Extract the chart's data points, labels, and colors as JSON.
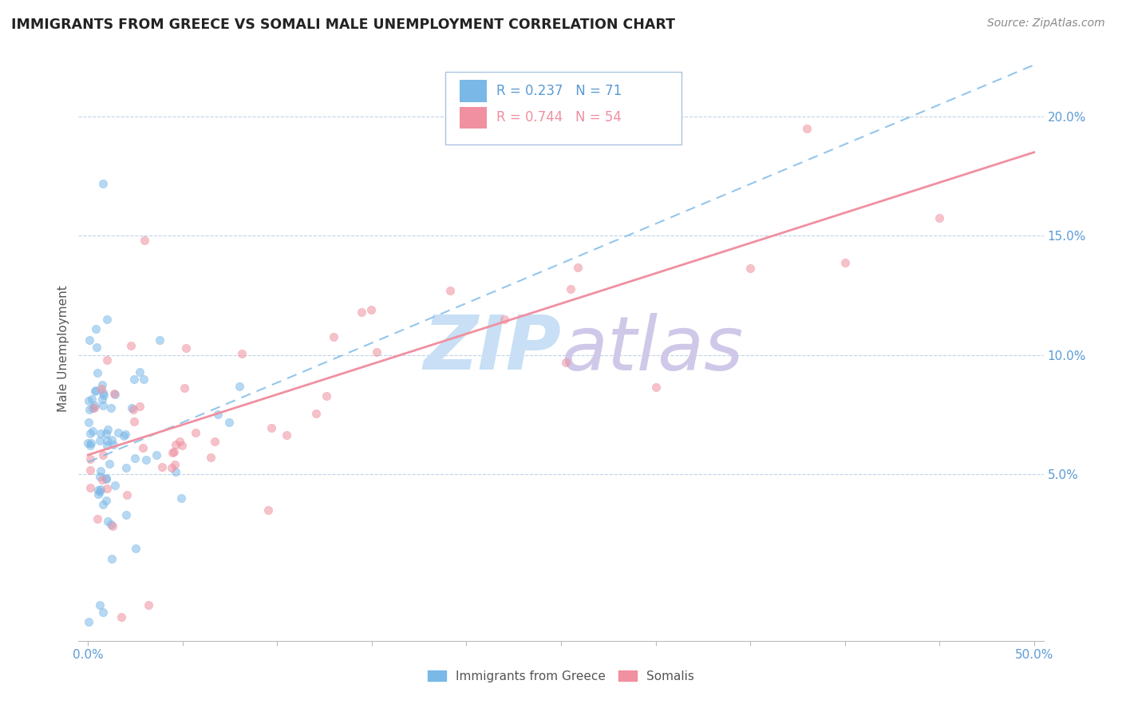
{
  "title": "IMMIGRANTS FROM GREECE VS SOMALI MALE UNEMPLOYMENT CORRELATION CHART",
  "source": "Source: ZipAtlas.com",
  "ylabel": "Male Unemployment",
  "xlim": [
    -0.005,
    0.505
  ],
  "ylim": [
    -0.02,
    0.225
  ],
  "xtick_positions": [
    0.0,
    0.05,
    0.1,
    0.15,
    0.2,
    0.25,
    0.3,
    0.35,
    0.4,
    0.45,
    0.5
  ],
  "xticklabels_show": {
    "0.0": "0.0%",
    "0.50": "50.0%"
  },
  "ytick_positions": [
    0.05,
    0.1,
    0.15,
    0.2
  ],
  "yticklabels": [
    "5.0%",
    "10.0%",
    "15.0%",
    "20.0%"
  ],
  "legend_bottom_label1": "Immigrants from Greece",
  "legend_bottom_label2": "Somalis",
  "color_blue": "#7ab8e8",
  "color_pink": "#f090a0",
  "color_trend_blue": "#7ab8e8",
  "color_trend_pink": "#f090a0",
  "color_axis_blue": "#5b9bd5",
  "watermark_color_zip": "#c8dff5",
  "watermark_color_atlas": "#d0c8e8",
  "R_greece": 0.237,
  "N_greece": 71,
  "R_somali": 0.744,
  "N_somali": 54,
  "somali_trend_x0": 0.0,
  "somali_trend_y0": 0.058,
  "somali_trend_x1": 0.5,
  "somali_trend_y1": 0.185,
  "greece_trend_x0": 0.0,
  "greece_trend_y0": 0.055,
  "greece_trend_x1": 0.12,
  "greece_trend_y1": 0.095
}
